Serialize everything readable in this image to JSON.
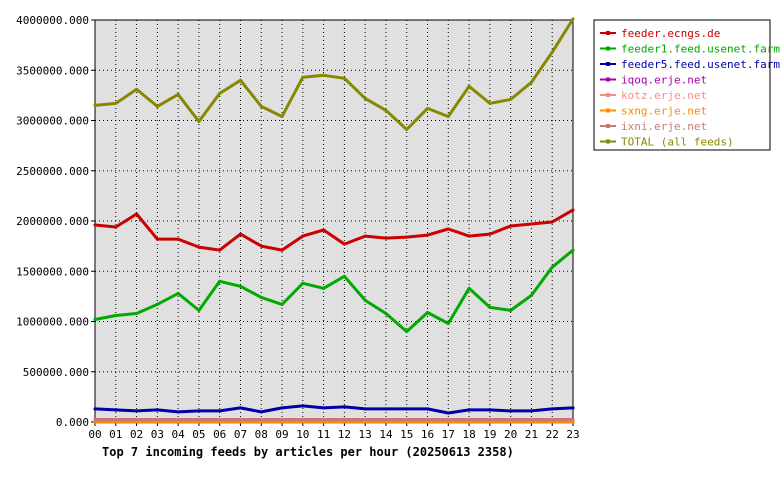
{
  "chart_data": {
    "type": "line",
    "title": "Top 7 incoming feeds by articles per hour (20250613 2358)",
    "xlabel": "",
    "ylabel": "",
    "categories": [
      "00",
      "01",
      "02",
      "03",
      "04",
      "05",
      "06",
      "07",
      "08",
      "09",
      "10",
      "11",
      "12",
      "13",
      "14",
      "15",
      "16",
      "17",
      "18",
      "19",
      "20",
      "21",
      "22",
      "23"
    ],
    "ylim": [
      0,
      4000000
    ],
    "yticks": [
      0,
      500000,
      1000000,
      1500000,
      2000000,
      2500000,
      3000000,
      3500000,
      4000000
    ],
    "ytick_labels": [
      "0.000",
      "500000.000",
      "1000000.000",
      "1500000.000",
      "2000000.000",
      "2500000.000",
      "3000000.000",
      "3500000.000",
      "4000000.000"
    ],
    "grid": true,
    "legend_position": "right",
    "series": [
      {
        "name": "feeder.ecngs.de",
        "color": "#cc0000",
        "values": [
          1960000,
          1940000,
          2070000,
          1820000,
          1820000,
          1740000,
          1710000,
          1870000,
          1750000,
          1710000,
          1850000,
          1910000,
          1770000,
          1850000,
          1830000,
          1840000,
          1860000,
          1920000,
          1850000,
          1870000,
          1950000,
          1970000,
          1990000,
          2110000
        ]
      },
      {
        "name": "feeder1.feed.usenet.farm",
        "color": "#00aa00",
        "values": [
          1020000,
          1060000,
          1080000,
          1170000,
          1280000,
          1110000,
          1400000,
          1350000,
          1240000,
          1170000,
          1380000,
          1330000,
          1450000,
          1210000,
          1080000,
          900000,
          1090000,
          980000,
          1330000,
          1140000,
          1110000,
          1260000,
          1540000,
          1710000
        ]
      },
      {
        "name": "feeder5.feed.usenet.farm",
        "color": "#0000aa",
        "values": [
          130000,
          120000,
          110000,
          120000,
          100000,
          110000,
          110000,
          140000,
          100000,
          140000,
          160000,
          140000,
          150000,
          130000,
          130000,
          130000,
          130000,
          90000,
          120000,
          120000,
          110000,
          110000,
          130000,
          140000
        ]
      },
      {
        "name": "iqoq.erje.net",
        "color": "#aa00aa",
        "values": [
          1000,
          1000,
          1000,
          1000,
          1000,
          1000,
          1000,
          1000,
          1000,
          1000,
          1000,
          1000,
          1000,
          1000,
          1000,
          1000,
          1000,
          1000,
          1000,
          1000,
          1000,
          1000,
          1000,
          1000
        ]
      },
      {
        "name": "kotz.erje.net",
        "color": "#ff8888",
        "values": [
          20000,
          20000,
          20000,
          20000,
          20000,
          20000,
          20000,
          20000,
          20000,
          20000,
          20000,
          20000,
          20000,
          20000,
          20000,
          20000,
          20000,
          20000,
          20000,
          20000,
          20000,
          20000,
          20000,
          20000
        ]
      },
      {
        "name": "sxng.erje.net",
        "color": "#ff8800",
        "values": [
          1000,
          1000,
          1000,
          1000,
          1000,
          1000,
          1000,
          1000,
          1000,
          1000,
          1000,
          1000,
          1000,
          1000,
          1000,
          1000,
          1000,
          1000,
          1000,
          1000,
          1000,
          1000,
          1000,
          1000
        ]
      },
      {
        "name": "ixni.erje.net",
        "color": "#cc7777",
        "values": [
          25000,
          25000,
          25000,
          25000,
          25000,
          25000,
          25000,
          25000,
          25000,
          25000,
          25000,
          25000,
          25000,
          25000,
          25000,
          25000,
          25000,
          25000,
          25000,
          25000,
          25000,
          25000,
          25000,
          25000
        ]
      },
      {
        "name": "TOTAL (all feeds)",
        "color": "#888800",
        "values": [
          3150000,
          3170000,
          3310000,
          3140000,
          3260000,
          2990000,
          3270000,
          3400000,
          3140000,
          3040000,
          3430000,
          3450000,
          3420000,
          3220000,
          3100000,
          2910000,
          3120000,
          3040000,
          3340000,
          3170000,
          3210000,
          3380000,
          3680000,
          4010000
        ]
      }
    ]
  }
}
